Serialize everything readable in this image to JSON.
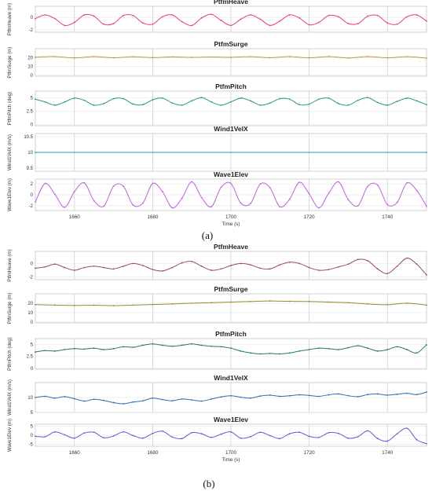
{
  "chart_data": [
    {
      "figure_label": "(a)",
      "type": "line",
      "xlabel": "Time (s)",
      "xlim": [
        1650,
        1750
      ],
      "xticks": [
        1660,
        1680,
        1700,
        1720,
        1740
      ],
      "grid": true,
      "subplots": [
        {
          "title": "PtfmHeave",
          "ylabel": "PtfmHeave (m)",
          "ylim": [
            -2.4,
            1.8
          ],
          "yticks": [
            -2,
            0
          ],
          "color": "#e8416f",
          "series": [
            {
              "x": [
                1650,
                1652.5,
                1655,
                1657.5,
                1660,
                1662.5,
                1665,
                1667.5,
                1670,
                1672.5,
                1675,
                1677.5,
                1680,
                1682.5,
                1685,
                1687.5,
                1690,
                1692.5,
                1695,
                1697.5,
                1700,
                1702.5,
                1705,
                1707.5,
                1710,
                1712.5,
                1715,
                1717.5,
                1720,
                1722.5,
                1725,
                1727.5,
                1730,
                1732.5,
                1735,
                1737.5,
                1740,
                1742.5,
                1745,
                1747.5,
                1750
              ],
              "y": [
                -0.2,
                0.4,
                -0.2,
                -1.3,
                -0.8,
                0.4,
                0.2,
                -1.1,
                -1.0,
                0.3,
                0.3,
                -0.9,
                -1.1,
                0.1,
                0.4,
                -0.7,
                -1.3,
                -0.1,
                0.5,
                -0.5,
                -1.3,
                -0.3,
                0.4,
                -0.3,
                -1.3,
                -0.6,
                0.4,
                -0.1,
                -1.2,
                -0.8,
                0.3,
                0.1,
                -1.0,
                -1.0,
                0.2,
                0.3,
                -0.9,
                -1.1,
                0.1,
                0.4,
                -0.6
              ]
            }
          ]
        },
        {
          "title": "PtfmSurge",
          "ylabel": "PtfmSurge (m)",
          "ylim": [
            -1,
            30
          ],
          "yticks": [
            0,
            10,
            20
          ],
          "color": "#b5a13a",
          "series": [
            {
              "x": [
                1650,
                1655,
                1660,
                1665,
                1670,
                1675,
                1680,
                1685,
                1690,
                1695,
                1700,
                1705,
                1710,
                1715,
                1720,
                1725,
                1730,
                1735,
                1740,
                1745,
                1750
              ],
              "y": [
                20.3,
                21.2,
                19.6,
                21.1,
                19.8,
                20.9,
                20.0,
                20.8,
                20.2,
                20.7,
                20.3,
                21.0,
                19.9,
                21.1,
                19.7,
                21.2,
                19.6,
                21.2,
                19.7,
                21.0,
                19.4
              ]
            }
          ]
        },
        {
          "title": "PtfmPitch",
          "ylabel": "PtfmPitch (deg)",
          "ylim": [
            -0.2,
            6.2
          ],
          "yticks": [
            0.0,
            2.5,
            5.0
          ],
          "color": "#2a9d73",
          "series": [
            {
              "x": [
                1650,
                1652.5,
                1655,
                1657.5,
                1660,
                1662.5,
                1665,
                1667.5,
                1670,
                1672.5,
                1675,
                1677.5,
                1680,
                1682.5,
                1685,
                1687.5,
                1690,
                1692.5,
                1695,
                1697.5,
                1700,
                1702.5,
                1705,
                1707.5,
                1710,
                1712.5,
                1715,
                1717.5,
                1720,
                1722.5,
                1725,
                1727.5,
                1730,
                1732.5,
                1735,
                1737.5,
                1740,
                1742.5,
                1745,
                1747.5,
                1750
              ],
              "y": [
                4.7,
                4.2,
                3.6,
                4.2,
                4.9,
                4.5,
                3.6,
                3.9,
                4.8,
                4.8,
                3.8,
                3.7,
                4.6,
                4.9,
                4.0,
                3.6,
                4.4,
                5.0,
                4.2,
                3.6,
                4.2,
                4.9,
                4.4,
                3.6,
                4.0,
                4.8,
                4.7,
                3.7,
                3.8,
                4.7,
                4.9,
                3.9,
                3.6,
                4.5,
                5.0,
                4.1,
                3.6,
                4.3,
                4.9,
                4.4,
                3.7
              ]
            }
          ]
        },
        {
          "title": "Wind1VelX",
          "ylabel": "Wind1VelX (m/s)",
          "ylim": [
            9.4,
            10.6
          ],
          "yticks": [
            9.5,
            10.0,
            10.5
          ],
          "color": "#1f9bb8",
          "series": [
            {
              "x": [
                1650,
                1750
              ],
              "y": [
                10.0,
                10.0
              ]
            }
          ]
        },
        {
          "title": "Wave1Elev",
          "ylabel": "Wave1Elev (m)",
          "ylim": [
            -2.9,
            2.9
          ],
          "yticks": [
            -2,
            0,
            2
          ],
          "color": "#c060e0",
          "series": [
            {
              "x": [
                1650,
                1652.5,
                1655,
                1657.5,
                1660,
                1662.5,
                1665,
                1667.5,
                1670,
                1672.5,
                1675,
                1677.5,
                1680,
                1682.5,
                1685,
                1687.5,
                1690,
                1692.5,
                1695,
                1697.5,
                1700,
                1702.5,
                1705,
                1707.5,
                1710,
                1712.5,
                1715,
                1717.5,
                1720,
                1722.5,
                1725,
                1727.5,
                1730,
                1732.5,
                1735,
                1737.5,
                1740,
                1742.5,
                1745,
                1747.5,
                1750
              ],
              "y": [
                -1.3,
                2.1,
                0.1,
                -2.3,
                0.6,
                2.2,
                -1.1,
                -2.1,
                1.6,
                1.6,
                -1.9,
                -1.5,
                2.1,
                0.6,
                -2.4,
                -0.6,
                2.4,
                -0.5,
                -2.2,
                1.4,
                2.1,
                -1.5,
                -1.6,
                2.0,
                1.3,
                -2.2,
                -0.8,
                2.3,
                0.2,
                -2.4,
                0.3,
                2.4,
                -0.9,
                -2.0,
                1.6,
                1.8,
                -1.8,
                -1.4,
                2.2,
                0.8,
                -2.1
              ]
            }
          ]
        }
      ]
    },
    {
      "figure_label": "(b)",
      "type": "line",
      "xlabel": "Time (s)",
      "xlim": [
        1650,
        1750
      ],
      "xticks": [
        1660,
        1680,
        1700,
        1720,
        1740
      ],
      "grid": true,
      "subplots": [
        {
          "title": "PtfmHeave",
          "ylabel": "PtfmHeave (m)",
          "ylim": [
            -2.4,
            1.8
          ],
          "yticks": [
            -2,
            0
          ],
          "color": "#9e4b6a",
          "series": [
            {
              "x": [
                1650,
                1652.5,
                1655,
                1657.5,
                1660,
                1662.5,
                1665,
                1667.5,
                1670,
                1672.5,
                1675,
                1677.5,
                1680,
                1682.5,
                1685,
                1687.5,
                1690,
                1692.5,
                1695,
                1697.5,
                1700,
                1702.5,
                1705,
                1707.5,
                1710,
                1712.5,
                1715,
                1717.5,
                1720,
                1722.5,
                1725,
                1727.5,
                1730,
                1732.5,
                1735,
                1737.5,
                1740,
                1742.5,
                1745,
                1747.5,
                1750
              ],
              "y": [
                -0.7,
                -0.5,
                -0.1,
                -0.6,
                -1.0,
                -0.6,
                -0.4,
                -0.6,
                -0.8,
                -0.4,
                0.0,
                -0.3,
                -0.9,
                -1.1,
                -0.6,
                0.1,
                0.3,
                -0.4,
                -1.0,
                -0.8,
                -0.3,
                0.0,
                -0.2,
                -0.7,
                -0.8,
                -0.2,
                0.2,
                0.0,
                -0.6,
                -1.0,
                -0.9,
                -0.5,
                -0.1,
                0.6,
                0.4,
                -0.8,
                -1.5,
                -0.4,
                0.8,
                -0.1,
                -1.7
              ]
            }
          ]
        },
        {
          "title": "PtfmSurge",
          "ylabel": "PtfmSurge (m)",
          "ylim": [
            -1,
            30
          ],
          "yticks": [
            0,
            10,
            20
          ],
          "color": "#9a8a2e",
          "series": [
            {
              "x": [
                1650,
                1655,
                1660,
                1665,
                1670,
                1675,
                1680,
                1685,
                1690,
                1695,
                1700,
                1705,
                1710,
                1715,
                1720,
                1725,
                1730,
                1735,
                1740,
                1745,
                1750
              ],
              "y": [
                18.5,
                18.0,
                17.6,
                17.8,
                17.4,
                18.0,
                18.6,
                19.2,
                20.0,
                20.6,
                21.2,
                21.8,
                22.4,
                22.0,
                21.8,
                21.2,
                20.6,
                19.2,
                18.4,
                20.0,
                18.0
              ]
            }
          ]
        },
        {
          "title": "PtfmPitch",
          "ylabel": "PtfmPitch (deg)",
          "ylim": [
            -0.2,
            6.2
          ],
          "yticks": [
            0.0,
            2.5,
            5.0
          ],
          "color": "#2a7a5a",
          "series": [
            {
              "x": [
                1650,
                1652.5,
                1655,
                1657.5,
                1660,
                1662.5,
                1665,
                1667.5,
                1670,
                1672.5,
                1675,
                1677.5,
                1680,
                1682.5,
                1685,
                1687.5,
                1690,
                1692.5,
                1695,
                1697.5,
                1700,
                1702.5,
                1705,
                1707.5,
                1710,
                1712.5,
                1715,
                1717.5,
                1720,
                1722.5,
                1725,
                1727.5,
                1730,
                1732.5,
                1735,
                1737.5,
                1740,
                1742.5,
                1745,
                1747.5,
                1750
              ],
              "y": [
                3.4,
                3.7,
                3.6,
                3.9,
                4.1,
                4.0,
                4.2,
                3.9,
                4.1,
                4.5,
                4.4,
                4.8,
                5.1,
                4.8,
                4.6,
                4.8,
                5.1,
                4.8,
                4.6,
                4.5,
                4.2,
                3.6,
                3.2,
                3.0,
                3.1,
                3.0,
                3.2,
                3.6,
                3.9,
                4.2,
                4.1,
                3.9,
                4.3,
                4.7,
                4.2,
                3.6,
                3.9,
                4.5,
                3.9,
                3.2,
                4.9
              ]
            }
          ]
        },
        {
          "title": "Wind1VelX",
          "ylabel": "Wind1VelX (m/s)",
          "ylim": [
            5,
            15
          ],
          "yticks": [
            5,
            10
          ],
          "color": "#2f6fb0",
          "series": [
            {
              "x": [
                1650,
                1652.5,
                1655,
                1657.5,
                1660,
                1662.5,
                1665,
                1667.5,
                1670,
                1672.5,
                1675,
                1677.5,
                1680,
                1682.5,
                1685,
                1687.5,
                1690,
                1692.5,
                1695,
                1697.5,
                1700,
                1702.5,
                1705,
                1707.5,
                1710,
                1712.5,
                1715,
                1717.5,
                1720,
                1722.5,
                1725,
                1727.5,
                1730,
                1732.5,
                1735,
                1737.5,
                1740,
                1742.5,
                1745,
                1747.5,
                1750
              ],
              "y": [
                10.0,
                10.4,
                9.8,
                10.3,
                9.6,
                8.8,
                9.4,
                9.0,
                8.3,
                7.9,
                8.5,
                8.9,
                9.8,
                9.3,
                8.9,
                9.5,
                9.2,
                8.8,
                9.5,
                10.2,
                10.6,
                10.1,
                9.8,
                10.5,
                10.8,
                10.4,
                10.6,
                10.9,
                10.7,
                10.4,
                10.9,
                11.2,
                10.6,
                10.3,
                11.0,
                11.2,
                10.8,
                11.1,
                11.4,
                11.0,
                11.8
              ]
            }
          ]
        },
        {
          "title": "Wave1Elev",
          "ylabel": "Wave1Elev (m)",
          "ylim": [
            -6,
            6
          ],
          "yticks": [
            -5,
            0,
            5
          ],
          "color": "#7a50d8",
          "series": [
            {
              "x": [
                1650,
                1652.5,
                1655,
                1657.5,
                1660,
                1662.5,
                1665,
                1667.5,
                1670,
                1672.5,
                1675,
                1677.5,
                1680,
                1682.5,
                1685,
                1687.5,
                1690,
                1692.5,
                1695,
                1697.5,
                1700,
                1702.5,
                1705,
                1707.5,
                1710,
                1712.5,
                1715,
                1717.5,
                1720,
                1722.5,
                1725,
                1727.5,
                1730,
                1732.5,
                1735,
                1737.5,
                1740,
                1742.5,
                1745,
                1747.5,
                1750
              ],
              "y": [
                -0.6,
                -0.8,
                1.8,
                0.2,
                -1.6,
                1.2,
                1.6,
                -1.4,
                -0.4,
                1.8,
                -0.2,
                -1.6,
                1.0,
                2.2,
                -1.0,
                -1.8,
                1.4,
                0.8,
                -1.2,
                0.6,
                1.8,
                -1.6,
                -0.8,
                1.6,
                -0.2,
                -1.8,
                0.8,
                1.6,
                -0.6,
                -1.2,
                1.4,
                1.0,
                -1.6,
                -0.8,
                2.4,
                -1.8,
                -3.2,
                0.8,
                3.8,
                -2.4,
                -4.6
              ]
            }
          ]
        }
      ]
    }
  ]
}
